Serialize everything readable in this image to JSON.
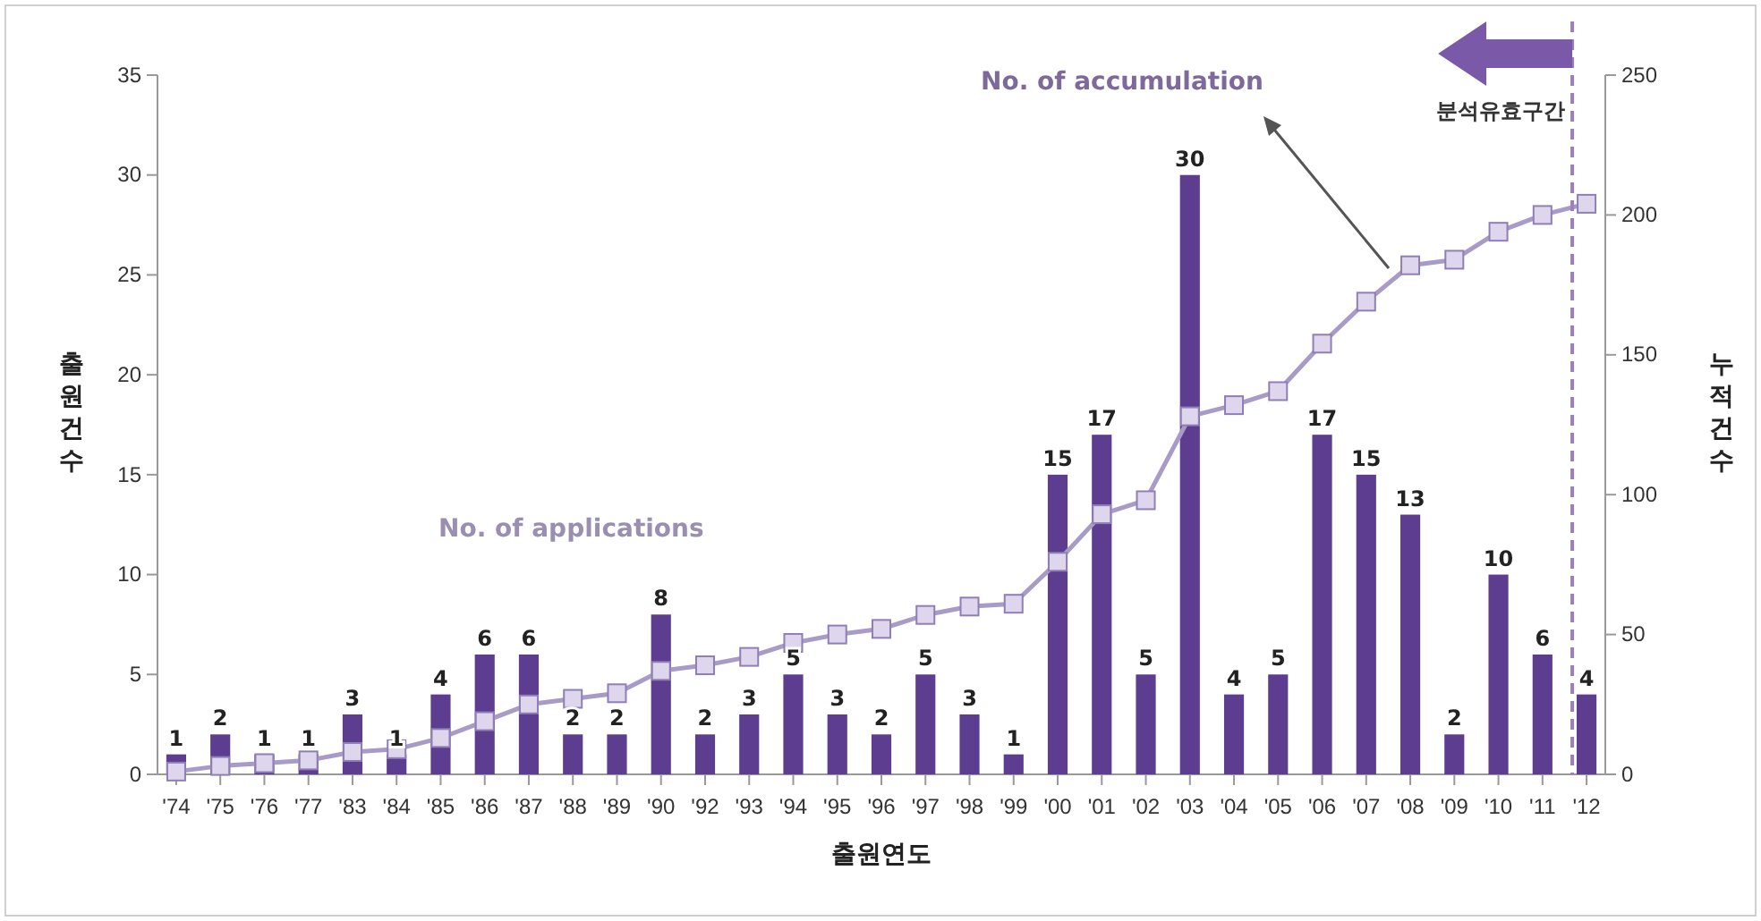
{
  "chart_data": {
    "type": "bar",
    "xlabel": "출원연도",
    "ylabel": "출원건수",
    "y2label": "누적건수",
    "categories": [
      "'74",
      "'75",
      "'76",
      "'77",
      "'83",
      "'84",
      "'85",
      "'86",
      "'87",
      "'88",
      "'89",
      "'90",
      "'92",
      "'93",
      "'94",
      "'95",
      "'96",
      "'97",
      "'98",
      "'99",
      "'00",
      "'01",
      "'02",
      "'03",
      "'04",
      "'05",
      "'06",
      "'07",
      "'08",
      "'09",
      "'10",
      "'11",
      "'12"
    ],
    "series": [
      {
        "color": "#5c3d8f",
        "values": [
          1,
          2,
          1,
          1,
          3,
          1,
          4,
          6,
          6,
          2,
          2,
          8,
          2,
          3,
          5,
          3,
          2,
          5,
          3,
          1,
          15,
          17,
          5,
          30,
          4,
          5,
          17,
          15,
          13,
          2,
          10,
          6,
          4
        ],
        "value_labels": [
          "1",
          "2",
          "1",
          "1",
          "3",
          "1",
          "4",
          "6",
          "6",
          "2",
          "2",
          "8",
          "2",
          "3",
          "5",
          "3",
          "2",
          "5",
          "3",
          "1",
          "15",
          "17",
          "5",
          "30",
          "4",
          "5",
          "17",
          "15",
          "13",
          "2",
          "10",
          "6",
          "4"
        ]
      },
      {
        "type": "line",
        "axis": "y2",
        "color": "#a99bc8",
        "marker": "square",
        "values": [
          1,
          3,
          4,
          5,
          8,
          9,
          13,
          19,
          25,
          27,
          29,
          37,
          39,
          42,
          47,
          50,
          52,
          57,
          60,
          61,
          76,
          93,
          98,
          128,
          132,
          137,
          154,
          169,
          182,
          184,
          194,
          200,
          204
        ]
      }
    ],
    "ylim": [
      0,
      35
    ],
    "yticks": [
      0,
      5,
      10,
      15,
      20,
      25,
      30,
      35
    ],
    "y2lim": [
      0,
      250
    ],
    "y2ticks": [
      0,
      50,
      100,
      150,
      200,
      250
    ],
    "grid": false,
    "ref_lines": [
      {
        "axis": "x",
        "value": "'12",
        "label": "분석유효구간",
        "color": "#9b7fc0",
        "line_style": "dashed"
      }
    ],
    "annotations": [
      "No. of accumulation",
      "No. of applications"
    ]
  }
}
